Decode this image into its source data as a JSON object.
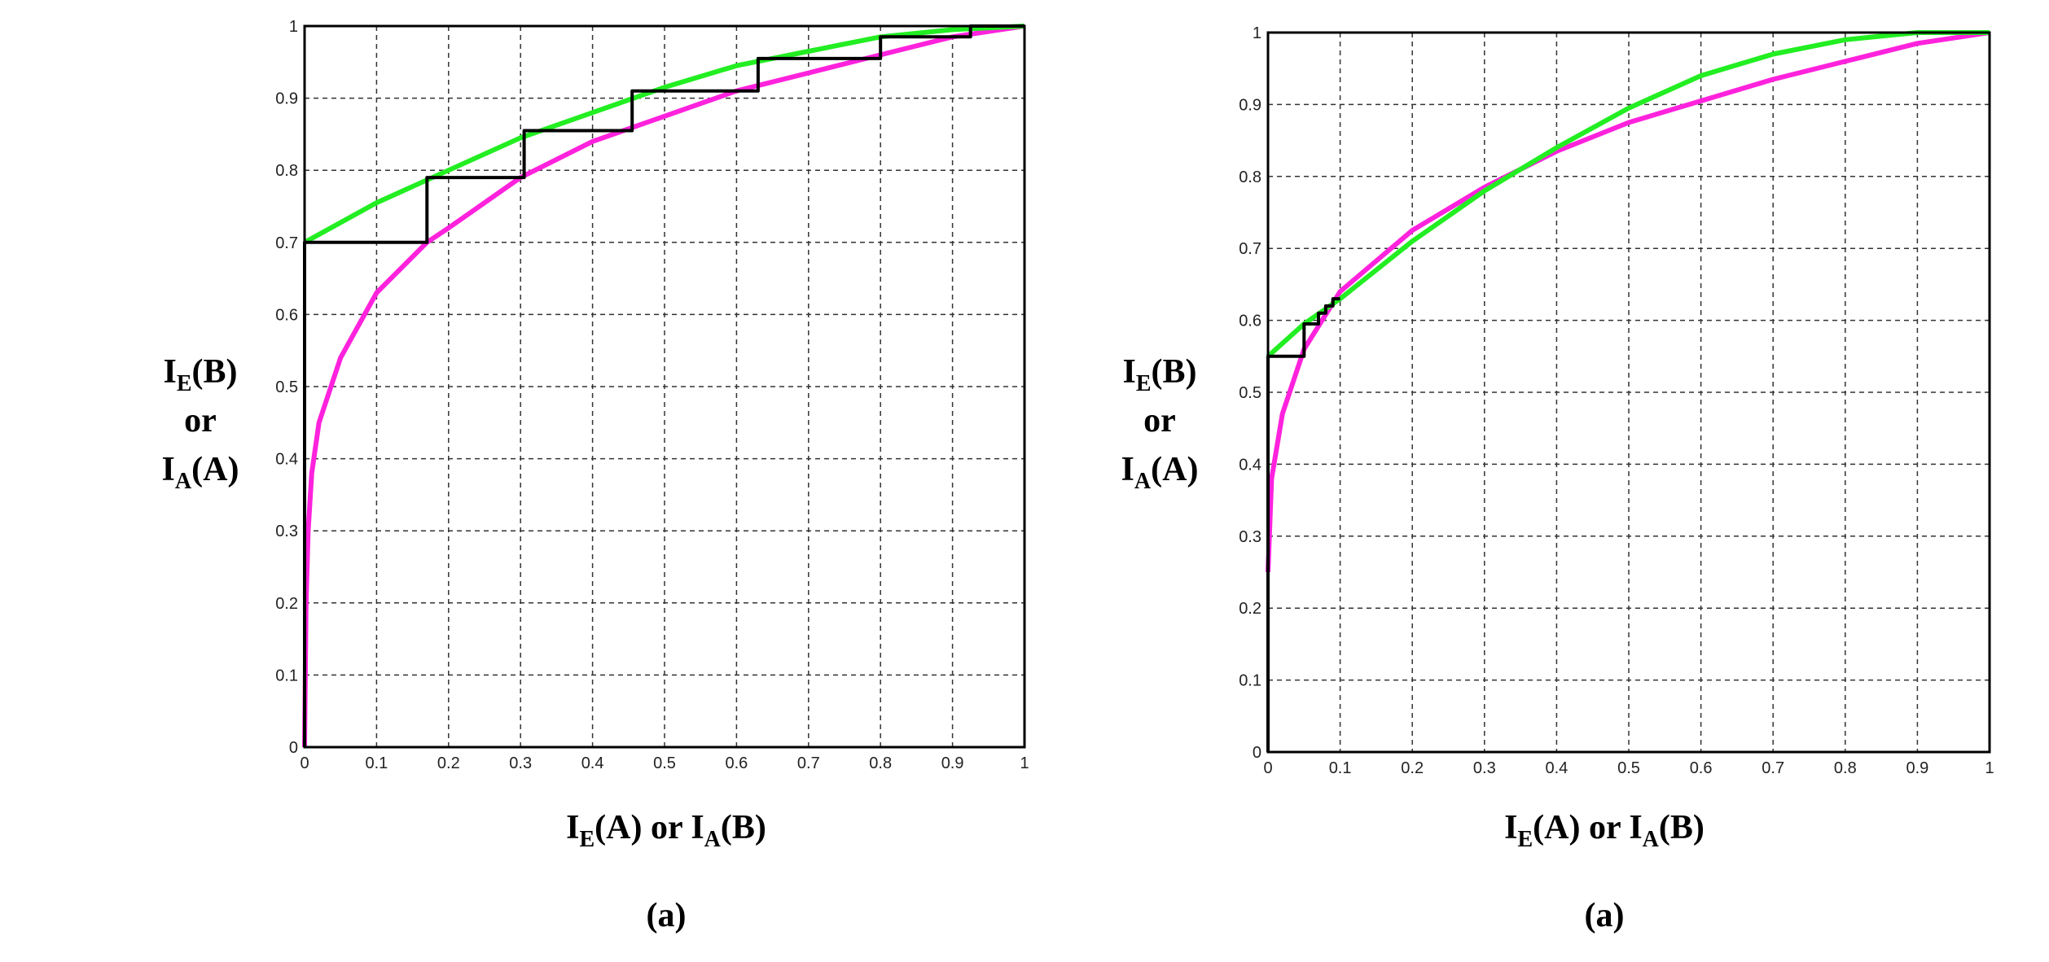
{
  "chart_data": [
    {
      "type": "line",
      "xlabel": [
        {
          "t": "I"
        },
        {
          "t": "E",
          "sub": true
        },
        {
          "t": "(A) or I"
        },
        {
          "t": "A",
          "sub": true
        },
        {
          "t": "(B)"
        }
      ],
      "ylabel": [
        [
          {
            "t": "I"
          },
          {
            "t": "E",
            "sub": true
          },
          {
            "t": "(B)"
          }
        ],
        [
          {
            "t": "or"
          }
        ],
        [
          {
            "t": "I"
          },
          {
            "t": "A",
            "sub": true
          },
          {
            "t": "(A)"
          }
        ]
      ],
      "caption": "(a)",
      "xlim": [
        0,
        1
      ],
      "ylim": [
        0,
        1
      ],
      "xticks": [
        0,
        0.1,
        0.2,
        0.3,
        0.4,
        0.5,
        0.6,
        0.7,
        0.8,
        0.9,
        1
      ],
      "yticks": [
        0,
        0.1,
        0.2,
        0.3,
        0.4,
        0.5,
        0.6,
        0.7,
        0.8,
        0.9,
        1
      ],
      "grid": true,
      "series": [
        {
          "color": "#ff22dd",
          "x": [
            0,
            0.002,
            0.005,
            0.01,
            0.02,
            0.05,
            0.1,
            0.17,
            0.2,
            0.3,
            0.4,
            0.5,
            0.6,
            0.7,
            0.8,
            0.9,
            1
          ],
          "values": [
            0,
            0.2,
            0.3,
            0.38,
            0.45,
            0.54,
            0.63,
            0.7,
            0.72,
            0.79,
            0.84,
            0.875,
            0.91,
            0.935,
            0.96,
            0.985,
            1
          ]
        },
        {
          "color": "#22ee22",
          "x": [
            0,
            0.1,
            0.2,
            0.3,
            0.4,
            0.5,
            0.6,
            0.7,
            0.8,
            0.9,
            1
          ],
          "values": [
            0.7,
            0.755,
            0.8,
            0.845,
            0.88,
            0.915,
            0.945,
            0.965,
            0.985,
            0.995,
            1
          ]
        },
        {
          "color": "#000000",
          "x": [
            0,
            0,
            0.17,
            0.17,
            0.305,
            0.305,
            0.455,
            0.455,
            0.63,
            0.63,
            0.8,
            0.8,
            0.925,
            0.925,
            1
          ],
          "values": [
            0,
            0.7,
            0.7,
            0.79,
            0.79,
            0.855,
            0.855,
            0.91,
            0.91,
            0.955,
            0.955,
            0.985,
            0.985,
            1,
            1
          ]
        }
      ]
    },
    {
      "type": "line",
      "xlabel": [
        {
          "t": "I"
        },
        {
          "t": "E",
          "sub": true
        },
        {
          "t": "(A) or I"
        },
        {
          "t": "A",
          "sub": true
        },
        {
          "t": "(B)"
        }
      ],
      "ylabel": [
        [
          {
            "t": "I"
          },
          {
            "t": "E",
            "sub": true
          },
          {
            "t": "(B)"
          }
        ],
        [
          {
            "t": "or"
          }
        ],
        [
          {
            "t": "I"
          },
          {
            "t": "A",
            "sub": true
          },
          {
            "t": "(A)"
          }
        ]
      ],
      "caption": "(a)",
      "xlim": [
        0,
        1
      ],
      "ylim": [
        0,
        1
      ],
      "xticks": [
        0,
        0.1,
        0.2,
        0.3,
        0.4,
        0.5,
        0.6,
        0.7,
        0.8,
        0.9,
        1
      ],
      "yticks": [
        0,
        0.1,
        0.2,
        0.3,
        0.4,
        0.5,
        0.6,
        0.7,
        0.8,
        0.9,
        1
      ],
      "grid": true,
      "series": [
        {
          "color": "#ff22dd",
          "x": [
            0,
            0.005,
            0.02,
            0.05,
            0.1,
            0.2,
            0.3,
            0.4,
            0.5,
            0.6,
            0.7,
            0.8,
            0.9,
            1
          ],
          "values": [
            0.25,
            0.38,
            0.47,
            0.56,
            0.64,
            0.725,
            0.785,
            0.835,
            0.875,
            0.905,
            0.935,
            0.96,
            0.985,
            1
          ]
        },
        {
          "color": "#22ee22",
          "x": [
            0,
            0.05,
            0.1,
            0.2,
            0.3,
            0.4,
            0.5,
            0.6,
            0.7,
            0.8,
            0.9,
            1
          ],
          "values": [
            0.55,
            0.595,
            0.63,
            0.71,
            0.78,
            0.84,
            0.895,
            0.94,
            0.97,
            0.99,
            1,
            1
          ]
        },
        {
          "color": "#000000",
          "x": [
            0,
            0,
            0.05,
            0.05,
            0.07,
            0.07,
            0.08,
            0.08,
            0.09,
            0.09,
            0.1
          ],
          "values": [
            0,
            0.55,
            0.55,
            0.595,
            0.595,
            0.61,
            0.61,
            0.62,
            0.62,
            0.63,
            0.63
          ]
        }
      ]
    }
  ]
}
